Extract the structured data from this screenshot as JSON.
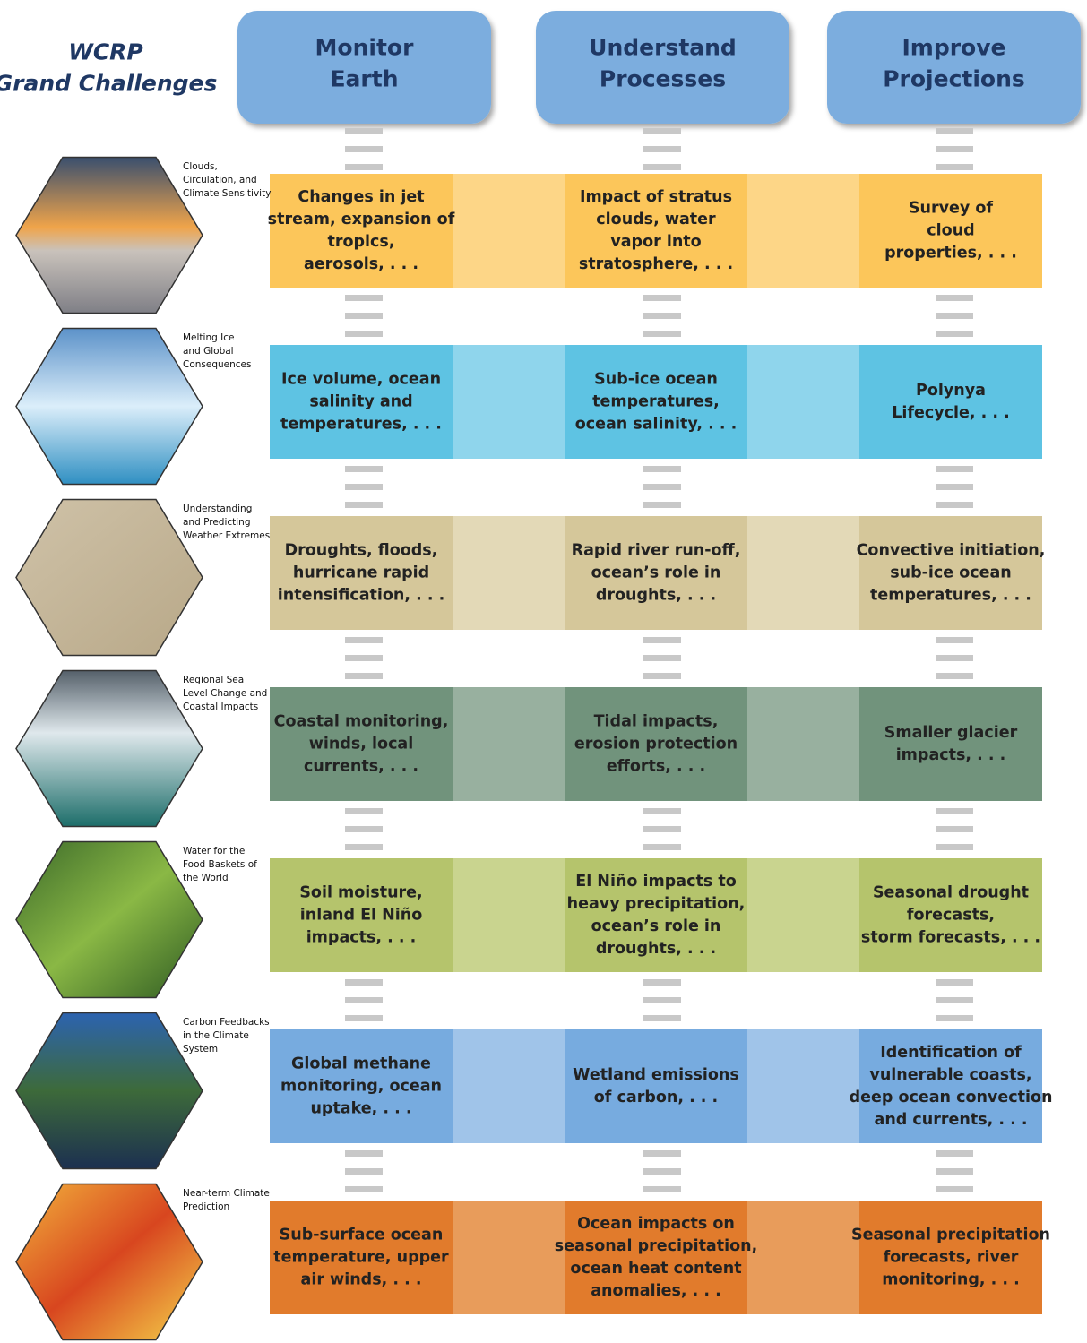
{
  "title": [
    "WCRP",
    "Grand Challenges"
  ],
  "columns": [
    [
      "Monitor",
      "Earth"
    ],
    [
      "Understand",
      "Processes"
    ],
    [
      "Improve",
      "Projections"
    ]
  ],
  "rows": [
    {
      "label": [
        "Clouds,",
        "Circulation, and",
        "Climate Sensitivity"
      ],
      "color": "#fcc65a",
      "light_color": "#fdd687",
      "cells": [
        [
          "Changes in jet",
          "stream, expansion of",
          "tropics,",
          "aerosols, . . ."
        ],
        [
          "Impact of stratus",
          "clouds, water",
          "vapor into",
          "stratosphere, . . ."
        ],
        [
          "Survey of",
          "cloud",
          "properties, . . ."
        ]
      ]
    },
    {
      "label": [
        "Melting Ice",
        "and Global",
        "Consequences"
      ],
      "color": "#5ec3e3",
      "light_color": "#8fd5ec",
      "cells": [
        [
          "Ice volume, ocean",
          "salinity and",
          "temperatures, . . ."
        ],
        [
          "Sub-ice ocean",
          "temperatures,",
          "ocean salinity, . . ."
        ],
        [
          "Polynya",
          "Lifecycle, . . ."
        ]
      ]
    },
    {
      "label": [
        "Understanding",
        "and Predicting",
        "Weather Extremes"
      ],
      "color": "#d5c79a",
      "light_color": "#e3d9b7",
      "cells": [
        [
          "Droughts, floods,",
          "hurricane rapid",
          "intensification, . . ."
        ],
        [
          "Rapid river run-off,",
          "ocean’s role in",
          "droughts, . . ."
        ],
        [
          "Convective initiation,",
          "sub-ice ocean",
          "temperatures, . . ."
        ]
      ]
    },
    {
      "label": [
        "Regional Sea",
        "Level Change and",
        "Coastal Impacts"
      ],
      "color": "#71937c",
      "light_color": "#98b09f",
      "cells": [
        [
          "Coastal monitoring,",
          "winds, local",
          "currents, . . ."
        ],
        [
          "Tidal impacts,",
          "erosion protection",
          "efforts, . . ."
        ],
        [
          "Smaller glacier",
          "impacts, . . ."
        ]
      ]
    },
    {
      "label": [
        "Water for the",
        "Food Baskets of",
        "the World"
      ],
      "color": "#b5c46c",
      "light_color": "#c9d48f",
      "cells": [
        [
          "Soil moisture,",
          "inland El Niño",
          "impacts, . . ."
        ],
        [
          "El Niño impacts to",
          "heavy precipitation,",
          "ocean’s role in",
          "droughts, . . ."
        ],
        [
          "Seasonal drought",
          "forecasts,",
          "storm forecasts, . . ."
        ]
      ]
    },
    {
      "label": [
        "Carbon Feedbacks",
        "in the Climate",
        "System"
      ],
      "color": "#77abdf",
      "light_color": "#a0c4e9",
      "cells": [
        [
          "Global methane",
          "monitoring, ocean",
          "uptake, . . ."
        ],
        [
          "Wetland emissions",
          "of carbon, . . ."
        ],
        [
          "Identification of",
          "vulnerable coasts,",
          "deep ocean convection",
          "and currents, . . ."
        ]
      ]
    },
    {
      "label": [
        "Near-term Climate",
        "Prediction"
      ],
      "color": "#e17b2c",
      "light_color": "#e89c5b",
      "cells": [
        [
          "Sub-surface ocean",
          "temperature, upper",
          "air winds, . . ."
        ],
        [
          "Ocean impacts on",
          "seasonal precipitation,",
          "ocean heat content",
          "anomalies, . . ."
        ],
        [
          "Seasonal precipitation",
          "forecasts, river",
          "monitoring, . . ."
        ]
      ]
    }
  ]
}
